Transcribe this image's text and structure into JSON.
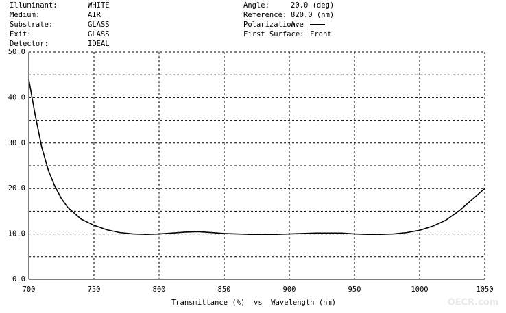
{
  "chart_data": {
    "type": "line",
    "info_left": [
      {
        "label": "Illuminant:",
        "value": "WHITE"
      },
      {
        "label": "Medium:",
        "value": "AIR"
      },
      {
        "label": "Substrate:",
        "value": "GLASS"
      },
      {
        "label": "Exit:",
        "value": "GLASS"
      },
      {
        "label": "Detector:",
        "value": "IDEAL"
      }
    ],
    "info_right": [
      {
        "label": "Angle:",
        "value": "20.0 (deg)"
      },
      {
        "label": "Reference:",
        "value": "820.0 (nm)"
      },
      {
        "label": "Polarization:"
      },
      {
        "label": "First Surface:",
        "value": "Front"
      }
    ],
    "x_label": "Transmittance (%)  vs  Wavelength (nm)",
    "watermark": "OECR.com",
    "x": [
      700,
      705,
      710,
      715,
      720,
      725,
      730,
      740,
      750,
      760,
      770,
      780,
      790,
      800,
      810,
      820,
      830,
      840,
      850,
      860,
      870,
      880,
      890,
      900,
      910,
      920,
      930,
      940,
      950,
      960,
      970,
      980,
      990,
      1000,
      1010,
      1020,
      1030,
      1040,
      1050
    ],
    "series": [
      {
        "name": "Ave",
        "color": "#000000",
        "values": [
          44,
          36,
          29,
          24,
          20.5,
          17.8,
          15.8,
          13.3,
          11.9,
          10.9,
          10.3,
          10.0,
          9.9,
          10.0,
          10.2,
          10.4,
          10.5,
          10.3,
          10.1,
          10.0,
          9.9,
          9.9,
          9.9,
          10.0,
          10.1,
          10.2,
          10.2,
          10.2,
          10.0,
          9.9,
          9.9,
          10.0,
          10.3,
          10.8,
          11.7,
          13.0,
          15.0,
          17.5,
          20.0
        ]
      }
    ],
    "xlim": [
      700,
      1050
    ],
    "xticks": [
      700,
      750,
      800,
      850,
      900,
      950,
      1000,
      1050
    ],
    "ylim": [
      0,
      50
    ],
    "yticks": [
      {
        "value": 0,
        "label": "0.0"
      },
      {
        "value": 10,
        "label": "10.0"
      },
      {
        "value": 20,
        "label": "20.0"
      },
      {
        "value": 30,
        "label": "30.0"
      },
      {
        "value": 40,
        "label": "40.0"
      },
      {
        "value": 50,
        "label": "50.0"
      }
    ],
    "y_minor_ticks": [
      5,
      15,
      25,
      35,
      45
    ],
    "grid": true
  }
}
